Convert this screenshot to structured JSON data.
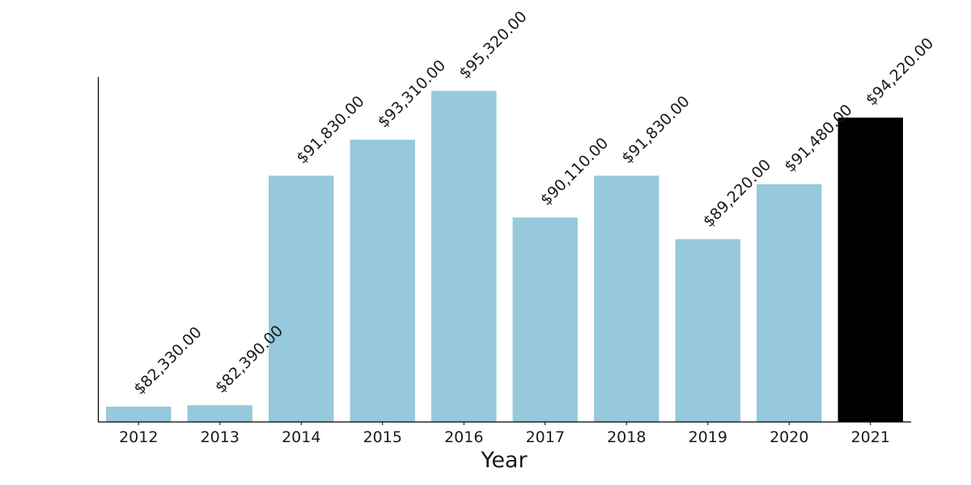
{
  "chart_data": {
    "type": "bar",
    "title": "",
    "xlabel": "Year",
    "ylabel": "",
    "categories": [
      "2012",
      "2013",
      "2014",
      "2015",
      "2016",
      "2017",
      "2018",
      "2019",
      "2020",
      "2021"
    ],
    "values": [
      82330,
      82390,
      91830,
      93310,
      95320,
      90110,
      91830,
      89220,
      91480,
      94220
    ],
    "value_labels": [
      "$82,330.00",
      "$82,390.00",
      "$91,830.00",
      "$93,310.00",
      "$95,320.00",
      "$90,110.00",
      "$91,830.00",
      "$89,220.00",
      "$91,480.00",
      "$94,220.00"
    ],
    "ylim": [
      81700,
      95900
    ],
    "y_axis_visible": false,
    "grid": false,
    "legend": "none",
    "highlight_category": "2021",
    "colors": {
      "bar": "#96c9dc",
      "highlight": "#000000",
      "axis": "#000000",
      "text": "#1a1a1a"
    }
  }
}
